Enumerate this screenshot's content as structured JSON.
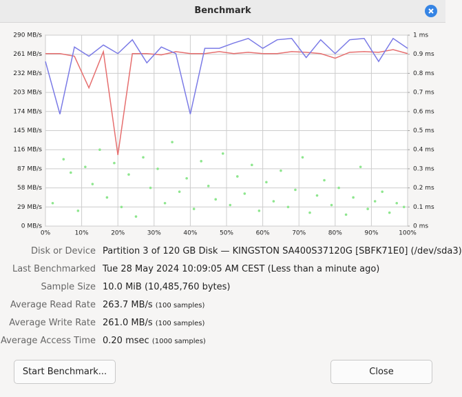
{
  "window": {
    "title": "Benchmark"
  },
  "chart_data": {
    "type": "line",
    "x": [
      0,
      4,
      8,
      12,
      16,
      20,
      24,
      28,
      32,
      36,
      40,
      44,
      48,
      52,
      56,
      60,
      64,
      68,
      72,
      76,
      80,
      84,
      88,
      92,
      96,
      100
    ],
    "series": [
      {
        "color": "#7a7ae6",
        "values": [
          250,
          170,
          272,
          258,
          275,
          262,
          283,
          248,
          272,
          262,
          170,
          270,
          270,
          278,
          285,
          270,
          283,
          285,
          256,
          283,
          262,
          283,
          285,
          250,
          285,
          270
        ]
      },
      {
        "color": "#e66e6e",
        "values": [
          262,
          262,
          258,
          210,
          265,
          108,
          262,
          262,
          260,
          265,
          262,
          262,
          265,
          262,
          264,
          262,
          262,
          265,
          264,
          262,
          255,
          264,
          265,
          264,
          268,
          262
        ]
      },
      {
        "type": "scatter",
        "axis": "y2",
        "color": "#8ee68e",
        "x": [
          2,
          5,
          7,
          9,
          11,
          13,
          15,
          17,
          19,
          21,
          23,
          25,
          27,
          29,
          31,
          33,
          35,
          37,
          39,
          41,
          43,
          45,
          47,
          49,
          51,
          53,
          55,
          57,
          59,
          61,
          63,
          65,
          67,
          69,
          71,
          73,
          75,
          77,
          79,
          81,
          83,
          85,
          87,
          89,
          91,
          93,
          95,
          97,
          99
        ],
        "values": [
          0.12,
          0.35,
          0.28,
          0.08,
          0.31,
          0.22,
          0.4,
          0.15,
          0.33,
          0.1,
          0.27,
          0.05,
          0.36,
          0.2,
          0.3,
          0.12,
          0.44,
          0.18,
          0.25,
          0.09,
          0.34,
          0.21,
          0.14,
          0.38,
          0.11,
          0.26,
          0.17,
          0.32,
          0.08,
          0.23,
          0.13,
          0.29,
          0.1,
          0.19,
          0.36,
          0.07,
          0.16,
          0.24,
          0.11,
          0.2,
          0.06,
          0.15,
          0.31,
          0.09,
          0.13,
          0.18,
          0.07,
          0.12,
          0.1
        ]
      }
    ],
    "xlim": [
      0,
      100
    ],
    "xticks": [
      {
        "value": 0,
        "label": "0%"
      },
      {
        "value": 10,
        "label": "10%"
      },
      {
        "value": 20,
        "label": "20%"
      },
      {
        "value": 30,
        "label": "30%"
      },
      {
        "value": 40,
        "label": "40%"
      },
      {
        "value": 50,
        "label": "50%"
      },
      {
        "value": 60,
        "label": "60%"
      },
      {
        "value": 70,
        "label": "70%"
      },
      {
        "value": 80,
        "label": "80%"
      },
      {
        "value": 90,
        "label": "90%"
      },
      {
        "value": 100,
        "label": "100%"
      }
    ],
    "ylim": [
      0,
      290
    ],
    "yticks": [
      {
        "value": 0,
        "label": "0 MB/s"
      },
      {
        "value": 29,
        "label": "29 MB/s"
      },
      {
        "value": 58,
        "label": "58 MB/s"
      },
      {
        "value": 87,
        "label": "87 MB/s"
      },
      {
        "value": 116,
        "label": "116 MB/s"
      },
      {
        "value": 145,
        "label": "145 MB/s"
      },
      {
        "value": 174,
        "label": "174 MB/s"
      },
      {
        "value": 203,
        "label": "203 MB/s"
      },
      {
        "value": 232,
        "label": "232 MB/s"
      },
      {
        "value": 261,
        "label": "261 MB/s"
      },
      {
        "value": 290,
        "label": "290 MB/s"
      }
    ],
    "y2lim": [
      0,
      1
    ],
    "y2ticks": [
      {
        "value": 0,
        "label": "0 ms"
      },
      {
        "value": 0.1,
        "label": "0.1 ms"
      },
      {
        "value": 0.2,
        "label": "0.2 ms"
      },
      {
        "value": 0.3,
        "label": "0.3 ms"
      },
      {
        "value": 0.4,
        "label": "0.4 ms"
      },
      {
        "value": 0.5,
        "label": "0.5 ms"
      },
      {
        "value": 0.6,
        "label": "0.6 ms"
      },
      {
        "value": 0.7,
        "label": "0.7 ms"
      },
      {
        "value": 0.8,
        "label": "0.8 ms"
      },
      {
        "value": 0.9,
        "label": "0.9 ms"
      },
      {
        "value": 1,
        "label": "1 ms"
      }
    ],
    "grid": true
  },
  "info": [
    {
      "label": "Disk or Device",
      "value": "Partition 3 of 120 GB Disk — KINGSTON SA400S37120G [SBFK71E0] (/dev/sda3)"
    },
    {
      "label": "Last Benchmarked",
      "value": "Tue 28 May 2024 10:09:05 AM CEST (Less than a minute ago)"
    },
    {
      "label": "Sample Size",
      "value": "10.0 MiB (10,485,760 bytes)"
    },
    {
      "label": "Average Read Rate",
      "value": "263.7 MB/s",
      "note": "(100 samples)"
    },
    {
      "label": "Average Write Rate",
      "value": "261.0 MB/s",
      "note": "(100 samples)"
    },
    {
      "label": "Average Access Time",
      "value": "0.20 msec",
      "note": "(1000 samples)"
    }
  ],
  "buttons": [
    "Start Benchmark...",
    "Close"
  ]
}
